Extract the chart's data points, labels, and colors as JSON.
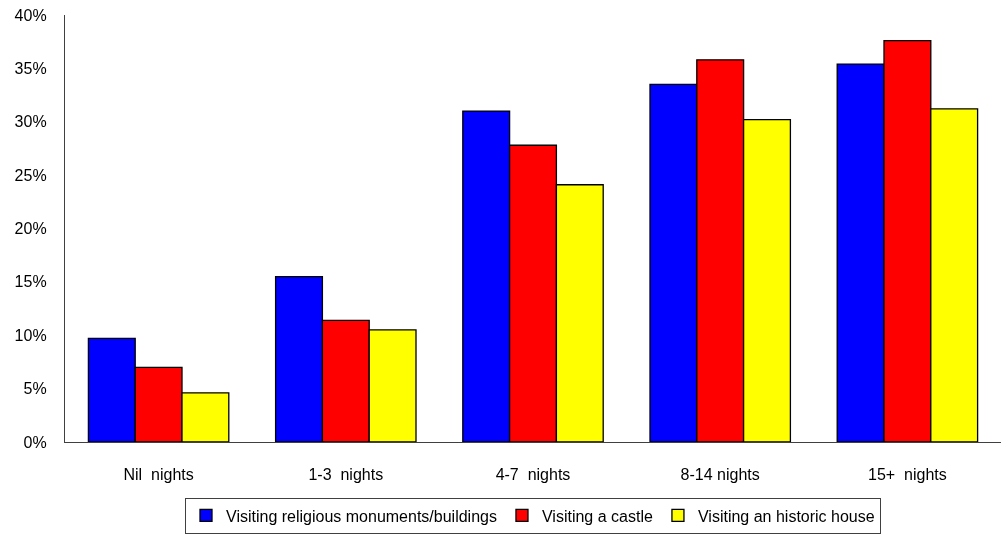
{
  "chart_data": {
    "type": "bar",
    "categories": [
      "Nil  nights",
      "1-3  nights",
      "4-7  nights",
      "8-14 nights",
      "15+  nights"
    ],
    "series": [
      {
        "name": "Visiting religious monuments/buildings",
        "color": "#0000ff",
        "values": [
          9.7,
          15.5,
          31.0,
          33.5,
          35.4
        ]
      },
      {
        "name": "Visiting a castle",
        "color": "#ff0000",
        "values": [
          7.0,
          11.4,
          27.8,
          35.8,
          37.6
        ]
      },
      {
        "name": "Visiting an historic house",
        "color": "#ffff00",
        "values": [
          4.6,
          10.5,
          24.1,
          30.2,
          31.2
        ]
      }
    ],
    "ylim": [
      0,
      40
    ],
    "yticks": [
      {
        "value": 0,
        "label": "0%"
      },
      {
        "value": 5,
        "label": "5%"
      },
      {
        "value": 10,
        "label": "10%"
      },
      {
        "value": 15,
        "label": "15%"
      },
      {
        "value": 20,
        "label": "20%"
      },
      {
        "value": 25,
        "label": "25%"
      },
      {
        "value": 30,
        "label": "30%"
      },
      {
        "value": 35,
        "label": "35%"
      },
      {
        "value": 40,
        "label": "40%"
      }
    ],
    "grid": false,
    "legend": "bottom"
  }
}
